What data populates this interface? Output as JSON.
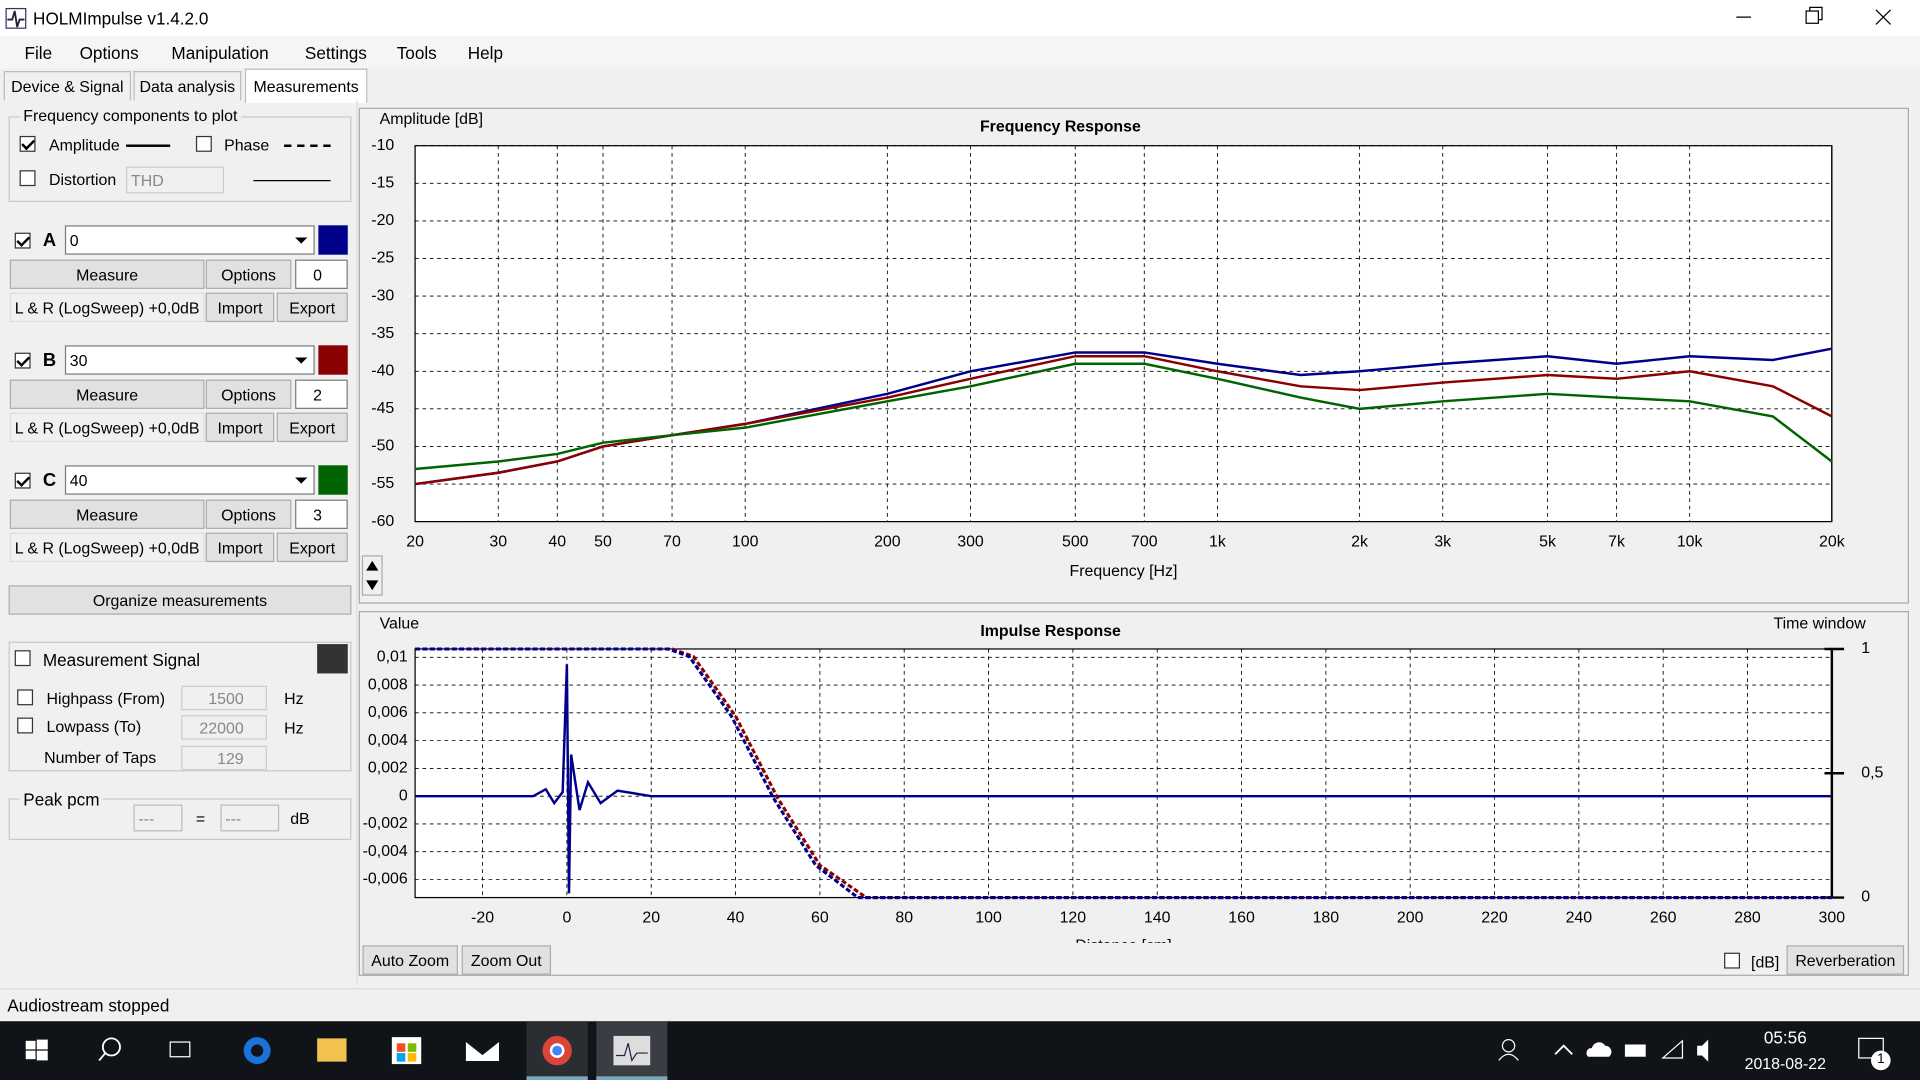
{
  "window": {
    "title": "HOLMImpulse  v1.4.2.0"
  },
  "menu": [
    "File",
    "Options",
    "Manipulation",
    "Settings",
    "Tools",
    "Help"
  ],
  "tabs": [
    "Device & Signal",
    "Data analysis",
    "Measurements"
  ],
  "frequency_components": {
    "title": "Frequency components to plot",
    "amplitude": "Amplitude",
    "amplitude_checked": true,
    "phase": "Phase",
    "phase_checked": false,
    "distortion": "Distortion",
    "distortion_checked": false,
    "distortion_type": "THD"
  },
  "measurements": [
    {
      "letter": "A",
      "name": "0",
      "checked": true,
      "measure": "Measure",
      "options": "Options",
      "count": "0",
      "info": "L & R (LogSweep) +0,0dB",
      "import": "Import",
      "export": "Export"
    },
    {
      "letter": "B",
      "name": "30",
      "checked": true,
      "measure": "Measure",
      "options": "Options",
      "count": "2",
      "info": "L & R (LogSweep) +0,0dB",
      "import": "Import",
      "export": "Export"
    },
    {
      "letter": "C",
      "name": "40",
      "checked": true,
      "measure": "Measure",
      "options": "Options",
      "count": "3",
      "info": "L & R (LogSweep) +0,0dB",
      "import": "Import",
      "export": "Export"
    }
  ],
  "organize": "Organize measurements",
  "signal": {
    "title": "Measurement Signal",
    "checked": false,
    "highpass": "Highpass (From)",
    "highpass_value": "1500",
    "highpass_unit": "Hz",
    "lowpass": "Lowpass (To)",
    "lowpass_value": "22000",
    "lowpass_unit": "Hz",
    "taps": "Number of Taps",
    "taps_value": "129"
  },
  "peak": {
    "title": "Peak pcm",
    "left": "---",
    "equals": "=",
    "right": "---",
    "unit": "dB"
  },
  "impulse_controls": {
    "auto_zoom": "Auto Zoom",
    "zoom_out": "Zoom Out",
    "db": "[dB]",
    "db_checked": false,
    "reverberation": "Reverberation"
  },
  "status": "Audiostream stopped",
  "taskbar": {
    "time": "05:56",
    "date": "2018-08-22",
    "notifications": "1"
  },
  "chart_data": [
    {
      "type": "line",
      "title": "Frequency Response",
      "y_label": "Amplitude [dB]",
      "x_label": "Frequency [Hz]",
      "log_x": true,
      "grid": true,
      "x": [
        20,
        30,
        40,
        50,
        70,
        100,
        200,
        300,
        500,
        700,
        1000,
        1500,
        2000,
        3000,
        5000,
        7000,
        10000,
        15000,
        20000
      ],
      "series": [
        {
          "color": "#00008b",
          "values": [
            -55,
            -53.5,
            -52,
            -50,
            -48.5,
            -47,
            -43,
            -40,
            -37.5,
            -37.5,
            -39,
            -40.5,
            -40,
            -39,
            -38,
            -39,
            -38,
            -38.5,
            -37
          ]
        },
        {
          "color": "#8b0000",
          "values": [
            -55,
            -53.5,
            -52,
            -50,
            -48.5,
            -47,
            -43.5,
            -41,
            -38,
            -38,
            -40,
            -42,
            -42.5,
            -41.5,
            -40.5,
            -41,
            -40,
            -42,
            -46
          ]
        },
        {
          "color": "#006400",
          "values": [
            -53,
            -52,
            -51,
            -49.5,
            -48.5,
            -47.5,
            -44,
            -42,
            -39,
            -39,
            -41,
            -43.5,
            -45,
            -44,
            -43,
            -43.5,
            -44,
            -46,
            -52
          ]
        }
      ],
      "xlim": [
        20,
        20000
      ],
      "ylim": [
        -60,
        -10
      ],
      "xticks": [
        20,
        30,
        40,
        50,
        70,
        100,
        200,
        300,
        500,
        700,
        {
          "value": 1000,
          "label": "1k"
        },
        {
          "value": 2000,
          "label": "2k"
        },
        {
          "value": 3000,
          "label": "3k"
        },
        {
          "value": 5000,
          "label": "5k"
        },
        {
          "value": 7000,
          "label": "7k"
        },
        {
          "value": 10000,
          "label": "10k"
        },
        {
          "value": 20000,
          "label": "20k"
        }
      ],
      "yticks": [
        -10,
        -15,
        -20,
        -25,
        -30,
        -35,
        -40,
        -45,
        -50,
        -55,
        -60
      ]
    },
    {
      "type": "line",
      "title": "Impulse Response",
      "y_label": "Value",
      "y2_label": "Time window",
      "x_label": "Distance [cm]",
      "log_x": false,
      "grid": true,
      "series": [
        {
          "color": "#00008b",
          "x": [
            -36,
            -8,
            -5,
            -3,
            -1,
            0,
            0.5,
            1,
            3,
            5,
            8,
            12,
            20,
            300
          ],
          "values": [
            0,
            0,
            0.0005,
            -0.0005,
            0.0003,
            0.0095,
            -0.007,
            0.003,
            -0.001,
            0.001,
            -0.0005,
            0.0004,
            0,
            0
          ]
        },
        {
          "color": "#8b0000",
          "dashed": true,
          "axis": "y2",
          "x": [
            -36,
            25,
            30,
            40,
            50,
            60,
            71,
            300
          ],
          "values": [
            1,
            1,
            0.97,
            0.73,
            0.4,
            0.13,
            0,
            0
          ]
        },
        {
          "color": "#00008b",
          "dashed": true,
          "axis": "y2",
          "x": [
            -36,
            24,
            29,
            39,
            49,
            59,
            69,
            300
          ],
          "values": [
            1,
            1,
            0.97,
            0.73,
            0.4,
            0.13,
            0,
            0
          ]
        }
      ],
      "xlim": [
        -36,
        300
      ],
      "ylim": [
        -0.0073,
        0.0106
      ],
      "y2lim": [
        0,
        1
      ],
      "xticks": [
        -20,
        0,
        20,
        40,
        60,
        80,
        100,
        120,
        140,
        160,
        180,
        200,
        220,
        240,
        260,
        280,
        300
      ],
      "yticks": [
        {
          "value": 0.01,
          "label": "0,01"
        },
        {
          "value": 0.008,
          "label": "0,008"
        },
        {
          "value": 0.006,
          "label": "0,006"
        },
        {
          "value": 0.004,
          "label": "0,004"
        },
        {
          "value": 0.002,
          "label": "0,002"
        },
        0,
        {
          "value": -0.002,
          "label": "-0,002"
        },
        {
          "value": -0.004,
          "label": "-0,004"
        },
        {
          "value": -0.006,
          "label": "-0,006"
        }
      ],
      "y2ticks": [
        0,
        {
          "value": 0.5,
          "label": "0,5"
        },
        1
      ]
    }
  ]
}
